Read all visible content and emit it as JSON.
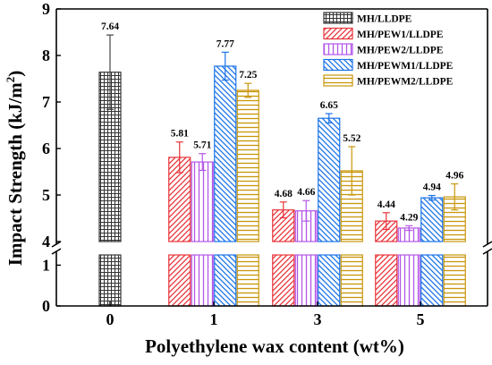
{
  "chart_data": {
    "type": "bar",
    "xlabel": "Polyethylene wax content (wt%)",
    "ylabel_main": "Impact Strength (kJ/m",
    "ylabel_sup": "2",
    "ylabel_close": ")",
    "categories": [
      "0",
      "1",
      "3",
      "5"
    ],
    "y_ticks_upper": [
      "4",
      "5",
      "6",
      "7",
      "8",
      "9"
    ],
    "y_ticks_lower": [
      "0",
      "1"
    ],
    "ylim_upper": [
      4,
      9
    ],
    "ylim_lower": [
      0,
      1.25
    ],
    "axis_break": true,
    "series": [
      {
        "name": "MH/LLDPE",
        "color": "#333333",
        "pattern": "grid",
        "values": [
          7.64,
          null,
          null,
          null
        ],
        "errors": [
          0.8,
          null,
          null,
          null
        ],
        "labels": [
          "7.64",
          "",
          "",
          ""
        ]
      },
      {
        "name": "MH/PEW1/LLDPE",
        "color": "#e8343a",
        "pattern": "diag-right",
        "values": [
          null,
          5.81,
          4.68,
          4.44
        ],
        "errors": [
          null,
          0.33,
          0.17,
          0.18
        ],
        "labels": [
          "",
          "5.81",
          "4.68",
          "4.44"
        ]
      },
      {
        "name": "MH/PEW2/LLDPE",
        "color": "#b356e8",
        "pattern": "vertical",
        "values": [
          null,
          5.71,
          4.66,
          4.29
        ],
        "errors": [
          null,
          0.18,
          0.22,
          0.05
        ],
        "labels": [
          "",
          "5.71",
          "4.66",
          "4.29"
        ]
      },
      {
        "name": "MH/PEWM1/LLDPE",
        "color": "#1a73e8",
        "pattern": "diag-left",
        "values": [
          null,
          7.77,
          6.65,
          4.94
        ],
        "errors": [
          null,
          0.3,
          0.1,
          0.05
        ],
        "labels": [
          "",
          "7.77",
          "6.65",
          "4.94"
        ]
      },
      {
        "name": "MH/PEWM2/LLDPE",
        "color": "#c9960a",
        "pattern": "horizontal",
        "values": [
          null,
          7.25,
          5.52,
          4.96
        ],
        "errors": [
          null,
          0.15,
          0.52,
          0.28
        ],
        "labels": [
          "",
          "7.25",
          "5.52",
          "4.96"
        ]
      }
    ],
    "legend_position": "top-right",
    "grid": false
  }
}
